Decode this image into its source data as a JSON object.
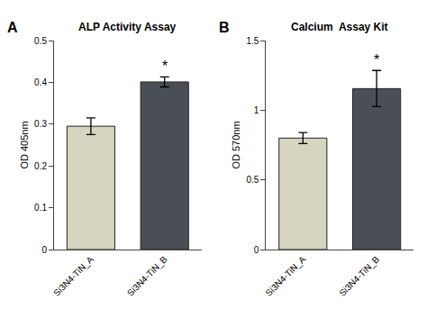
{
  "chart_data": [
    {
      "type": "bar",
      "title": "ALP Activity Assay",
      "ylabel": "OD 405nm",
      "categories": [
        "Si3N4-TiN_A",
        "Si3N4-TiN_B"
      ],
      "values": [
        0.295,
        0.401
      ],
      "errors": [
        0.02,
        0.012
      ],
      "colors": [
        "#d5d5c0",
        "#4a4e55"
      ],
      "ylim": [
        0,
        0.5
      ],
      "yticks": [
        0.0,
        0.1,
        0.2,
        0.3,
        0.4,
        0.5
      ],
      "grid": false,
      "annotations": [
        {
          "text": "*",
          "category": "Si3N4-TiN_B"
        },
        {
          "text": "A"
        }
      ]
    },
    {
      "type": "bar",
      "title": "Calcium  Assay Kit",
      "ylabel": "OD 570nm",
      "categories": [
        "Si3N4-TiN_A",
        "Si3N4-TiN_B"
      ],
      "values": [
        0.8,
        1.155
      ],
      "errors": [
        0.04,
        0.13
      ],
      "colors": [
        "#d5d5c0",
        "#4a4e55"
      ],
      "ylim": [
        0,
        1.5
      ],
      "yticks": [
        0.0,
        0.5,
        1.0,
        1.5
      ],
      "grid": false,
      "annotations": [
        {
          "text": "*",
          "category": "Si3N4-TiN_B"
        },
        {
          "text": "B"
        }
      ]
    }
  ]
}
